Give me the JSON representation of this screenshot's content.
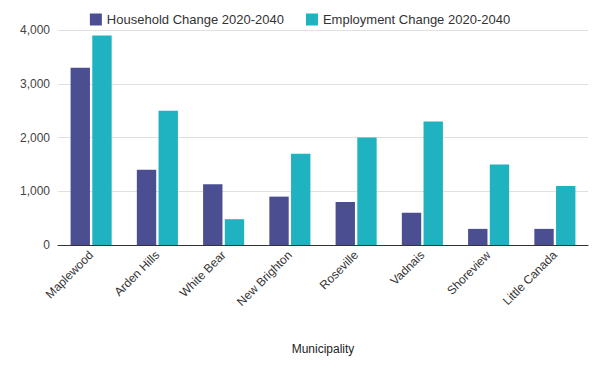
{
  "chart_data": {
    "type": "bar",
    "x_label": "Municipality",
    "categories": [
      "Maplewood",
      "Arden Hills",
      "White Bear",
      "New Brighton",
      "Roseville",
      "Vadnais",
      "Shoreview",
      "Little Canada"
    ],
    "series": [
      {
        "name": "Household Change 2020-2040",
        "color": "#4b4f92",
        "values": [
          3300,
          1400,
          1130,
          900,
          800,
          600,
          300,
          300
        ]
      },
      {
        "name": "Employment Change 2020-2040",
        "color": "#1fb3c1",
        "values": [
          3900,
          2500,
          480,
          1700,
          2000,
          2300,
          1500,
          1100
        ]
      }
    ],
    "ylim": [
      0,
      4000
    ],
    "yticks": [
      0,
      {
        "value": 1000,
        "label": "1,000"
      },
      {
        "value": 2000,
        "label": "2,000"
      },
      {
        "value": 3000,
        "label": "3,000"
      },
      {
        "value": 4000,
        "label": "4,000"
      }
    ],
    "grid": true,
    "legend": "top"
  }
}
